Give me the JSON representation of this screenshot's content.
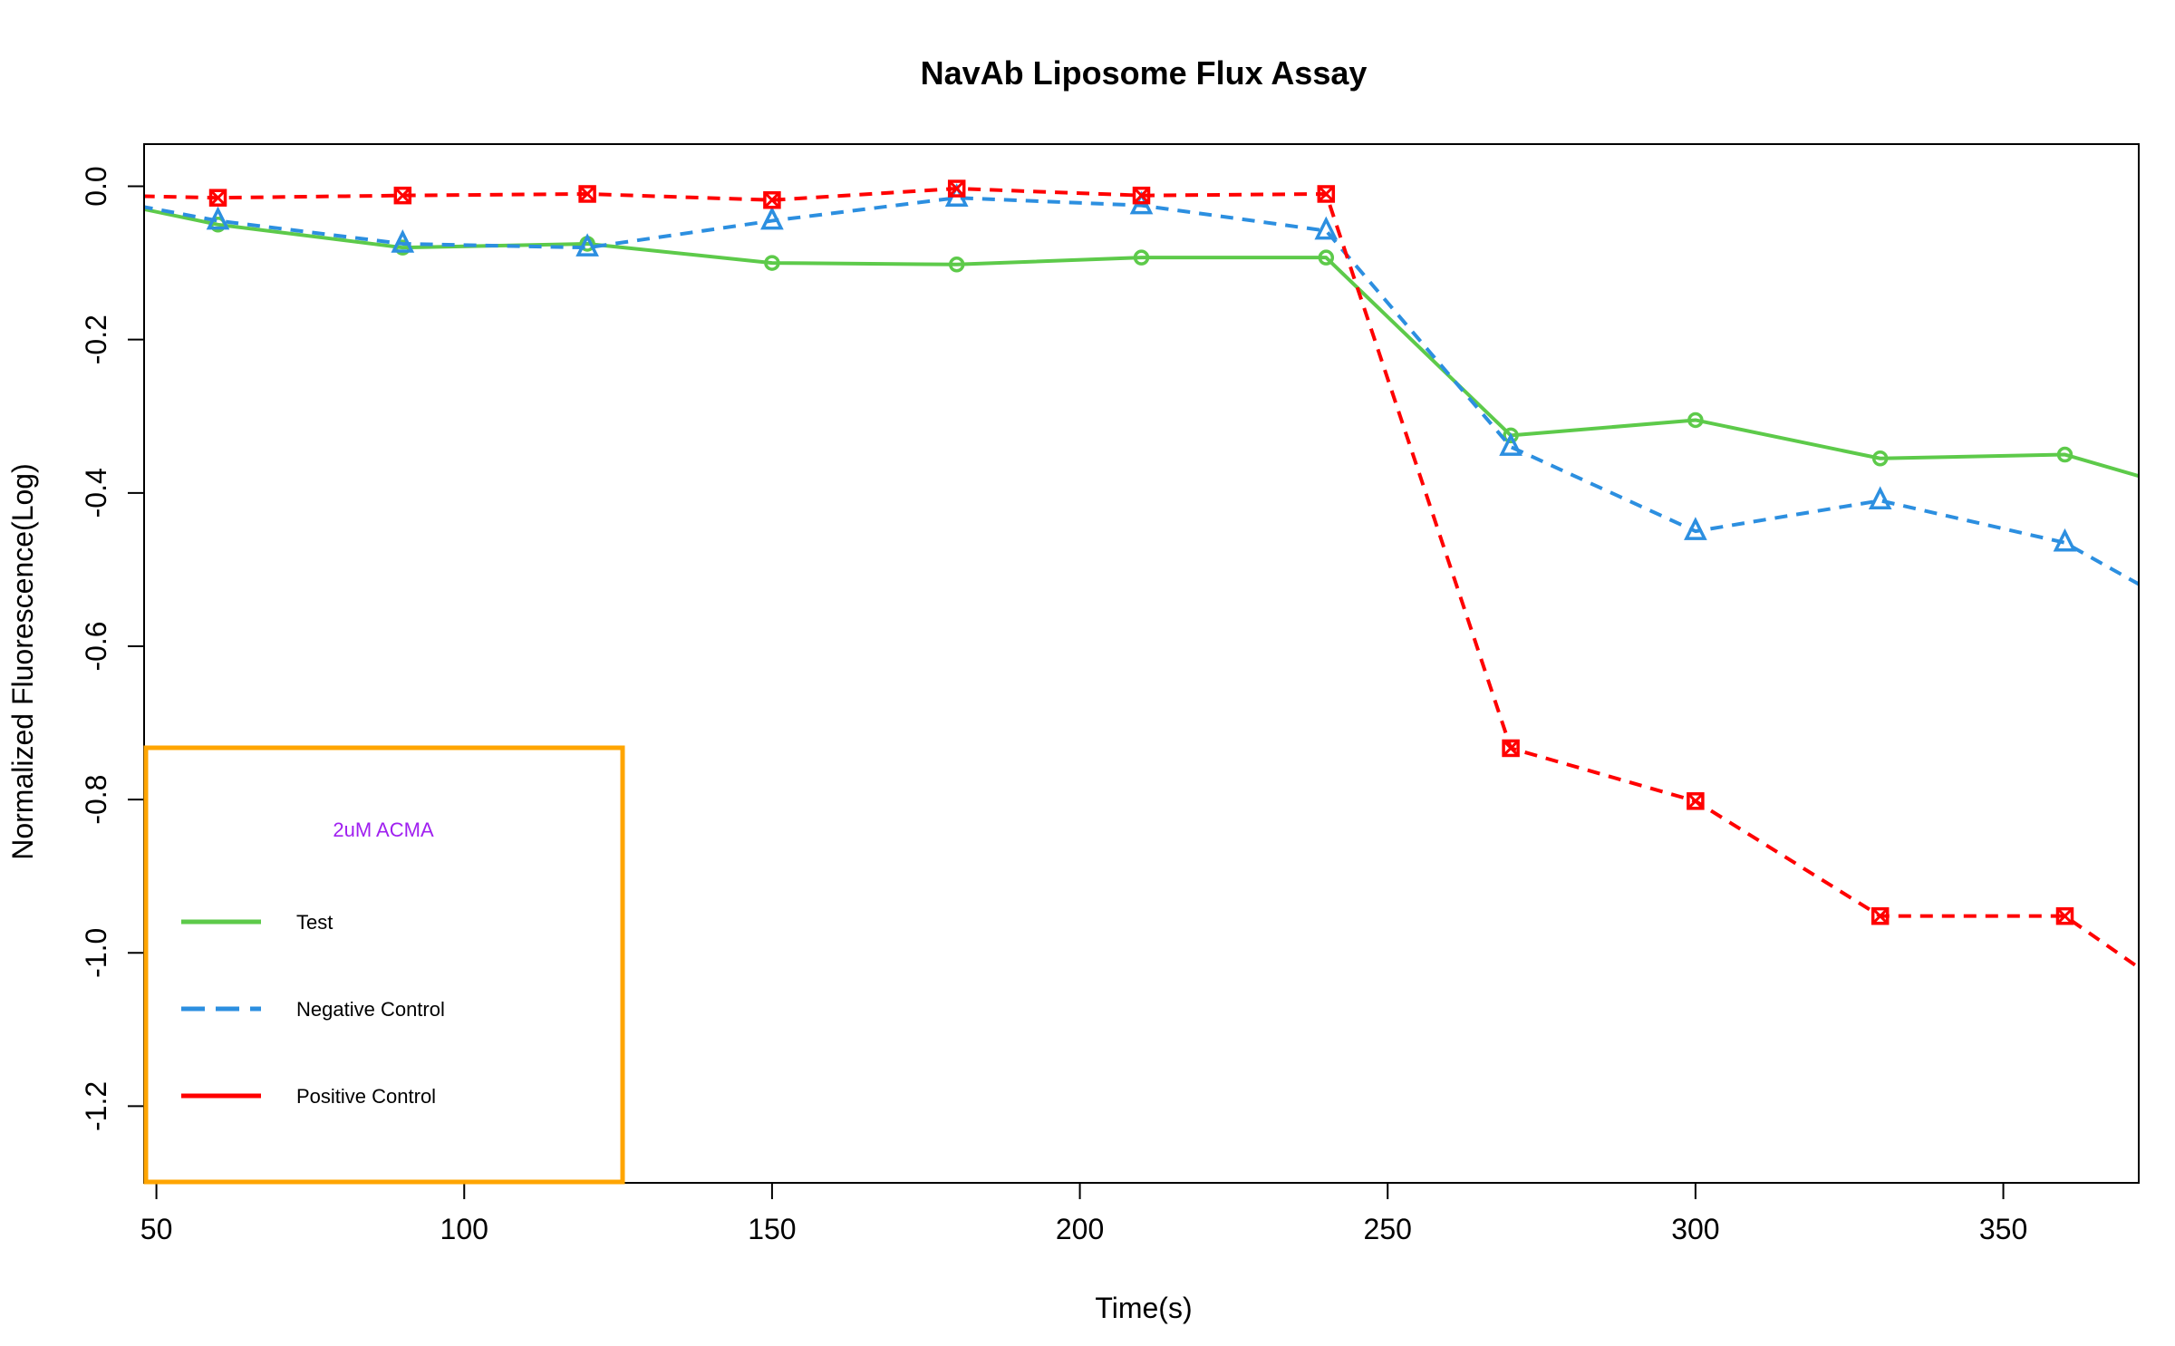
{
  "chart_data": {
    "type": "line",
    "title": "NavAb Liposome Flux Assay",
    "xlabel": "Time(s)",
    "ylabel": "Normalized Fluorescence(Log)",
    "xlim": [
      48,
      372
    ],
    "ylim": [
      -1.3,
      0.055
    ],
    "x_ticks": [
      50,
      100,
      150,
      200,
      250,
      300,
      350
    ],
    "y_ticks": [
      0.0,
      -0.2,
      -0.4,
      -0.6,
      -0.8,
      -1.0,
      -1.2
    ],
    "x_tick_labels": [
      "50",
      "100",
      "150",
      "200",
      "250",
      "300",
      "350"
    ],
    "y_tick_labels": [
      "0.0",
      "-0.2",
      "-0.4",
      "-0.6",
      "-0.8",
      "-1.0",
      "-1.2"
    ],
    "grid": false,
    "legend": {
      "placement": "bottom-left",
      "title": "2uM ACMA",
      "title_color": "#a020f0",
      "border_color": "#ffa500",
      "entries": [
        "Test",
        "Negative Control",
        "Positive Control"
      ]
    },
    "series": [
      {
        "name": "Test",
        "color": "#5dca4a",
        "line_style": "solid",
        "marker": "circle",
        "x": [
          30,
          60,
          90,
          120,
          150,
          180,
          210,
          240,
          270,
          300,
          330,
          360,
          390
        ],
        "y": [
          0.0,
          -0.05,
          -0.08,
          -0.075,
          -0.1,
          -0.102,
          -0.093,
          -0.093,
          -0.325,
          -0.305,
          -0.355,
          -0.35,
          -0.42
        ],
        "marker_x": [
          60,
          90,
          120,
          150,
          180,
          210,
          240,
          270,
          300,
          330,
          360
        ]
      },
      {
        "name": "Negative Control",
        "color": "#2c8fe0",
        "line_style": "dashed",
        "marker": "triangle",
        "x": [
          30,
          60,
          90,
          120,
          150,
          180,
          210,
          240,
          270,
          300,
          330,
          360,
          390
        ],
        "y": [
          0.0,
          -0.045,
          -0.075,
          -0.08,
          -0.045,
          -0.015,
          -0.025,
          -0.058,
          -0.34,
          -0.45,
          -0.41,
          -0.465,
          -0.6
        ],
        "marker_x": [
          60,
          90,
          120,
          150,
          180,
          210,
          240,
          270,
          300,
          330,
          360
        ]
      },
      {
        "name": "Positive Control",
        "color": "#ff0000",
        "line_style": "dashed",
        "marker": "square-x",
        "x": [
          30,
          60,
          90,
          120,
          150,
          180,
          210,
          240,
          270,
          300,
          330,
          360,
          390
        ],
        "y": [
          -0.01,
          -0.015,
          -0.012,
          -0.01,
          -0.018,
          -0.003,
          -0.012,
          -0.01,
          -0.733,
          -0.802,
          -0.952,
          -0.952,
          -1.12
        ],
        "marker_x": [
          60,
          90,
          120,
          150,
          180,
          210,
          240,
          270,
          300,
          330,
          360
        ]
      }
    ]
  }
}
